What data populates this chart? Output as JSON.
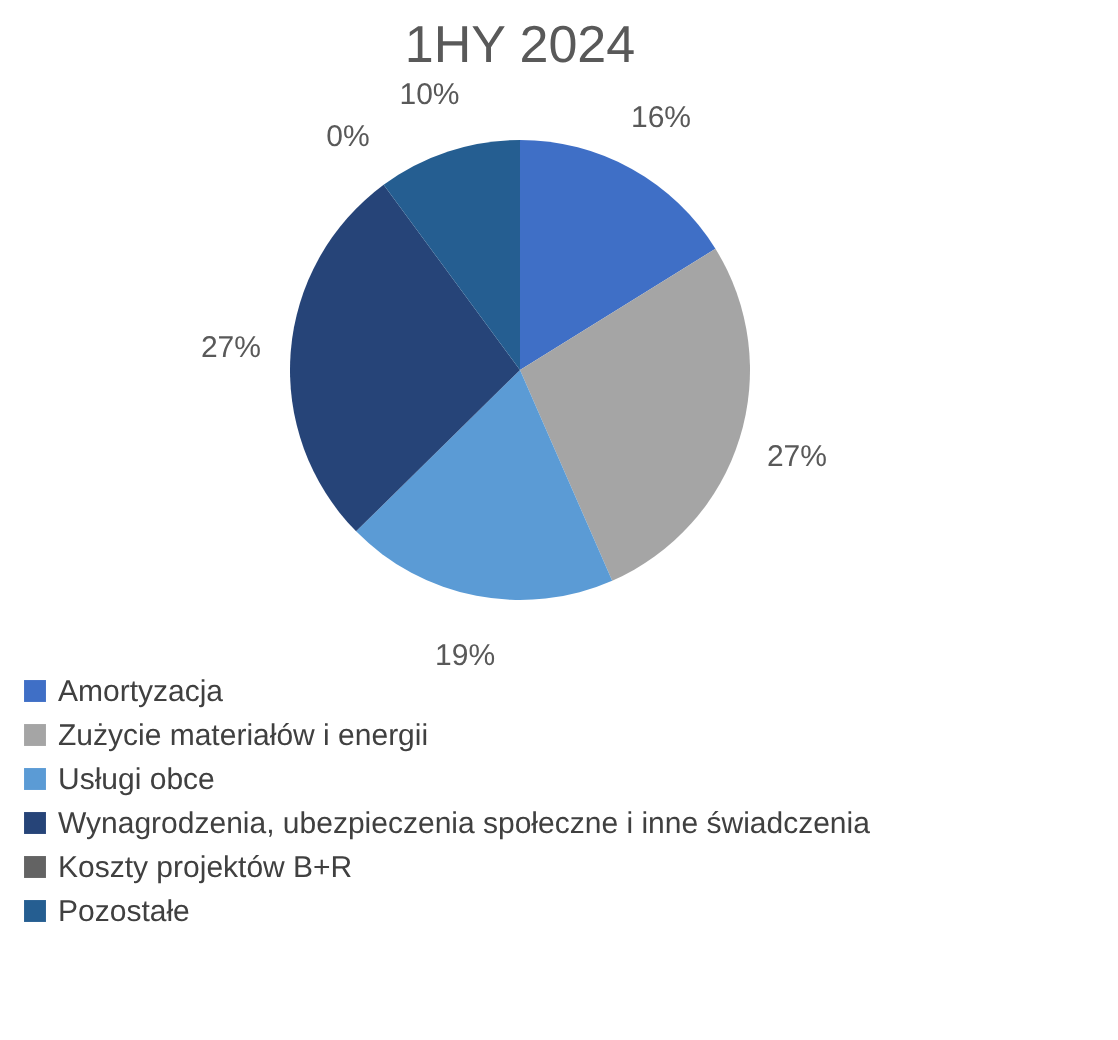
{
  "chart_data": {
    "type": "pie",
    "title": "1HY 2024",
    "categories": [
      "Amortyzacja",
      "Zużycie materiałów i energii",
      "Usługi obce",
      "Wynagrodzenia, ubezpieczenia społeczne i inne świadczenia",
      "Koszty projektów B+R",
      "Pozostałe"
    ],
    "values": [
      16,
      27,
      19,
      27,
      0,
      10
    ],
    "value_labels": [
      "16%",
      "27%",
      "19%",
      "27%",
      "0%",
      "10%"
    ],
    "colors": [
      "#3f6fc6",
      "#a5a5a5",
      "#5b9bd5",
      "#264478",
      "#636363",
      "#255e91"
    ],
    "legend": "bottom"
  }
}
